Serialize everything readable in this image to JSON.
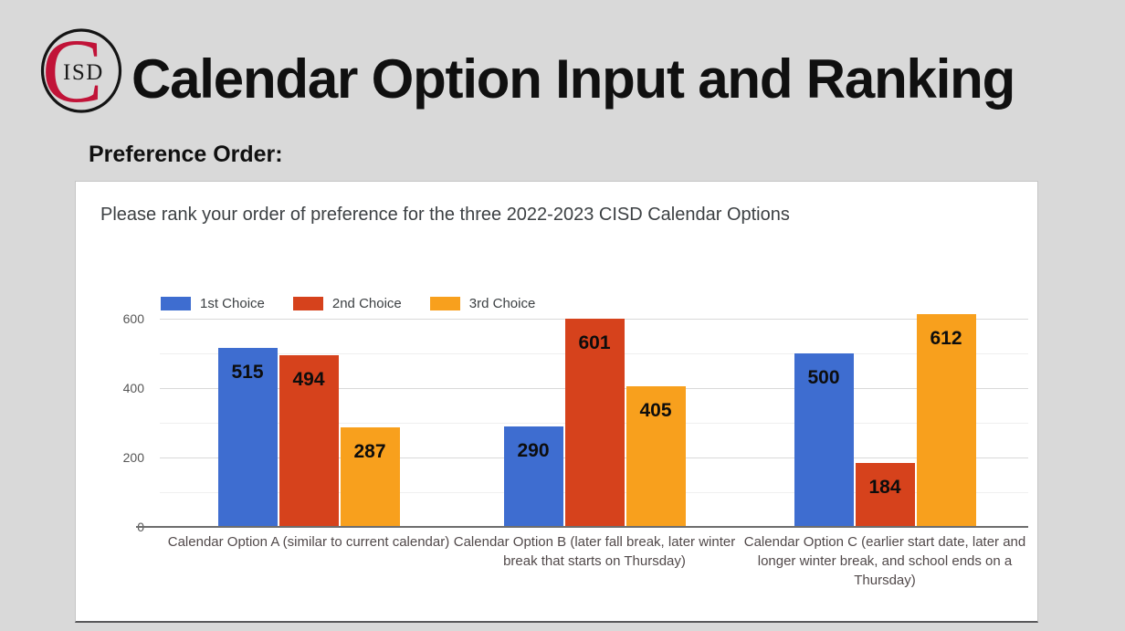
{
  "page": {
    "background": "#d9d9d9"
  },
  "header": {
    "logo": {
      "letter_c": "C",
      "letters_isd": "ISD",
      "c_color": "#c11338",
      "isd_color": "#1a1a1a",
      "ring_color": "#141414"
    },
    "title": "Calendar Option Input and Ranking"
  },
  "section": {
    "heading": "Preference Order:"
  },
  "chart_data": {
    "type": "bar",
    "title": "Please rank your order of preference for the three 2022-2023 CISD Calendar Options",
    "categories": [
      "Calendar Option A (similar to current calendar)",
      "Calendar Option B (later fall break, later winter break that starts on Thursday)",
      "Calendar Option C (earlier start date, later and longer winter break, and school ends on a Thursday)"
    ],
    "series": [
      {
        "name": "1st Choice",
        "color": "#3e6dd0",
        "values": [
          515,
          290,
          500
        ]
      },
      {
        "name": "2nd Choice",
        "color": "#d6421c",
        "values": [
          494,
          601,
          184
        ]
      },
      {
        "name": "3rd Choice",
        "color": "#f8a01d",
        "values": [
          287,
          405,
          612
        ]
      }
    ],
    "ylim": [
      0,
      600
    ],
    "yticks": [
      0,
      200,
      400,
      600
    ],
    "minor_gridlines": [
      100,
      300,
      500
    ],
    "grid": true,
    "legend_position": "top-left",
    "data_labels": true,
    "background": "#ffffff"
  }
}
